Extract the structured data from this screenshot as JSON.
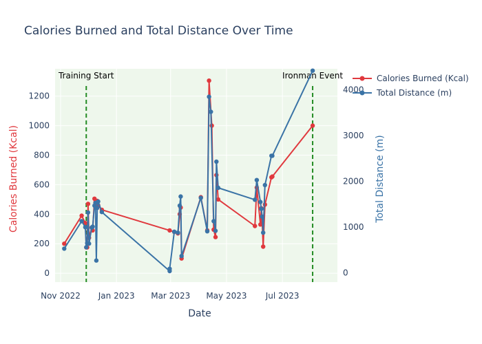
{
  "chart_data": {
    "type": "line",
    "title": "Calories Burned and Total Distance Over Time",
    "xlabel": "Date",
    "ylabel_left": "Calories Burned (Kcal)",
    "ylabel_right": "Total Distance (m)",
    "x_ticks": [
      "Nov 2022",
      "Jan 2023",
      "Mar 2023",
      "May 2023",
      "Jul 2023"
    ],
    "y_left_ticks": [
      0,
      200,
      400,
      600,
      800,
      1000,
      1200
    ],
    "y_right_ticks": [
      0,
      1000,
      2000,
      3000,
      4000
    ],
    "x_range": [
      "2022-10-26",
      "2023-08-30"
    ],
    "y_left_range": [
      -60,
      1385
    ],
    "y_right_range": [
      -200,
      4460
    ],
    "plot_background": "#eef7ec",
    "grid": true,
    "legend_position": "top-right",
    "annotations": [
      {
        "text": "Training Start",
        "date": "2022-11-29",
        "color": "#228b22"
      },
      {
        "text": "Ironman Event",
        "date": "2023-08-03",
        "color": "#228b22"
      }
    ],
    "series": [
      {
        "name": "Calories Burned (Kcal)",
        "axis": "left",
        "color": "#e0393e",
        "points": [
          [
            "2022-11-05",
            200
          ],
          [
            "2022-11-24",
            390
          ],
          [
            "2022-11-28",
            340
          ],
          [
            "2022-11-29",
            175
          ],
          [
            "2022-11-30",
            175
          ],
          [
            "2022-12-01",
            470
          ],
          [
            "2022-12-02",
            240
          ],
          [
            "2022-12-05",
            310
          ],
          [
            "2022-12-06",
            290
          ],
          [
            "2022-12-08",
            505
          ],
          [
            "2022-12-09",
            480
          ],
          [
            "2022-12-10",
            460
          ],
          [
            "2022-12-11",
            490
          ],
          [
            "2022-12-12",
            460
          ],
          [
            "2022-12-16",
            430
          ],
          [
            "2023-02-28",
            290
          ],
          [
            "2023-03-05",
            280
          ],
          [
            "2023-03-09",
            270
          ],
          [
            "2023-03-11",
            400
          ],
          [
            "2023-03-12",
            445
          ],
          [
            "2023-03-13",
            100
          ],
          [
            "2023-04-03",
            515
          ],
          [
            "2023-04-10",
            290
          ],
          [
            "2023-04-12",
            1305
          ],
          [
            "2023-04-15",
            1000
          ],
          [
            "2023-04-17",
            295
          ],
          [
            "2023-04-19",
            245
          ],
          [
            "2023-04-20",
            665
          ],
          [
            "2023-04-22",
            500
          ],
          [
            "2023-06-01",
            320
          ],
          [
            "2023-06-03",
            580
          ],
          [
            "2023-06-07",
            330
          ],
          [
            "2023-06-08",
            440
          ],
          [
            "2023-06-09",
            340
          ],
          [
            "2023-06-10",
            180
          ],
          [
            "2023-06-12",
            465
          ],
          [
            "2023-06-19",
            650
          ],
          [
            "2023-06-20",
            655
          ],
          [
            "2023-08-03",
            1000
          ]
        ]
      },
      {
        "name": "Total Distance (m)",
        "axis": "right",
        "color": "#3a73a6",
        "points": [
          [
            "2022-11-05",
            530
          ],
          [
            "2022-11-24",
            1130
          ],
          [
            "2022-11-28",
            1000
          ],
          [
            "2022-11-29",
            560
          ],
          [
            "2022-11-30",
            650
          ],
          [
            "2022-12-01",
            1320
          ],
          [
            "2022-12-02",
            640
          ],
          [
            "2022-12-05",
            990
          ],
          [
            "2022-12-06",
            1010
          ],
          [
            "2022-12-08",
            1470
          ],
          [
            "2022-12-09",
            1530
          ],
          [
            "2022-12-10",
            270
          ],
          [
            "2022-12-11",
            1420
          ],
          [
            "2022-12-12",
            1560
          ],
          [
            "2022-12-16",
            1330
          ],
          [
            "2023-02-28",
            40
          ],
          [
            "2023-02-28",
            90
          ],
          [
            "2023-03-05",
            900
          ],
          [
            "2023-03-09",
            880
          ],
          [
            "2023-03-11",
            1470
          ],
          [
            "2023-03-12",
            1670
          ],
          [
            "2023-03-13",
            370
          ],
          [
            "2023-04-03",
            1640
          ],
          [
            "2023-04-10",
            910
          ],
          [
            "2023-04-12",
            3850
          ],
          [
            "2023-04-14",
            3520
          ],
          [
            "2023-04-17",
            1130
          ],
          [
            "2023-04-19",
            920
          ],
          [
            "2023-04-20",
            2430
          ],
          [
            "2023-04-22",
            1860
          ],
          [
            "2023-06-01",
            1600
          ],
          [
            "2023-06-03",
            2030
          ],
          [
            "2023-06-07",
            1550
          ],
          [
            "2023-06-08",
            1400
          ],
          [
            "2023-06-09",
            1230
          ],
          [
            "2023-06-10",
            880
          ],
          [
            "2023-06-12",
            1920
          ],
          [
            "2023-06-19",
            2560
          ],
          [
            "2023-06-20",
            2560
          ],
          [
            "2023-08-03",
            4420
          ]
        ]
      }
    ]
  }
}
